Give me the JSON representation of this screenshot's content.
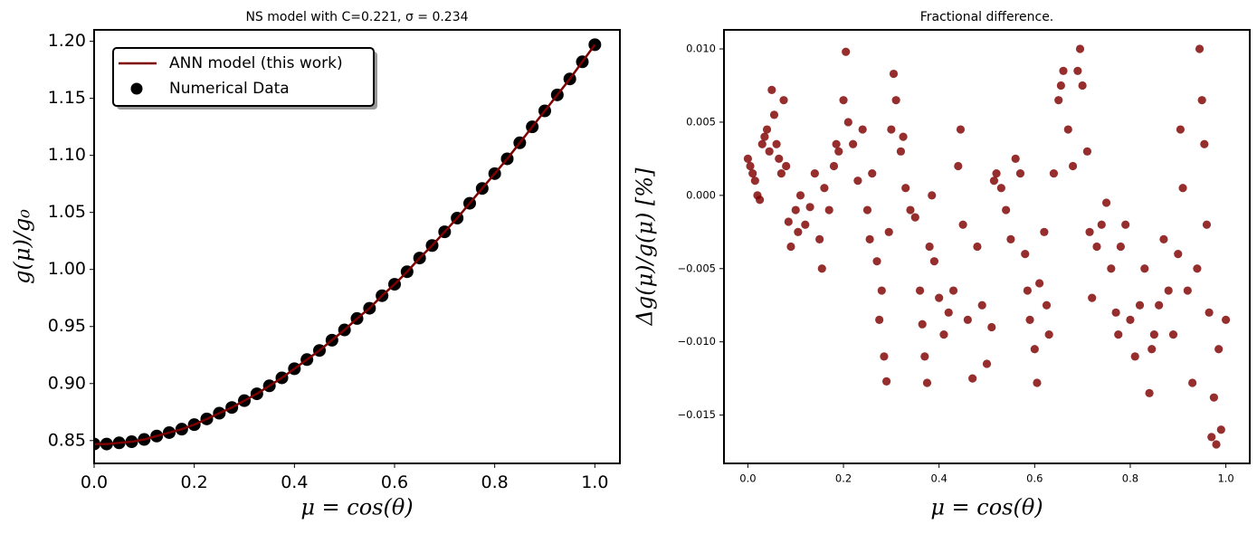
{
  "chart_data": [
    {
      "type": "line",
      "title": "NS model with C=0.221, σ = 0.234",
      "xlabel": "μ = cos(θ)",
      "ylabel": "g(μ)/g₀",
      "x": [
        0,
        0.025,
        0.05,
        0.075,
        0.1,
        0.125,
        0.15,
        0.175,
        0.2,
        0.225,
        0.25,
        0.275,
        0.3,
        0.325,
        0.35,
        0.375,
        0.4,
        0.425,
        0.45,
        0.475,
        0.5,
        0.525,
        0.55,
        0.575,
        0.6,
        0.625,
        0.65,
        0.675,
        0.7,
        0.725,
        0.75,
        0.775,
        0.8,
        0.825,
        0.85,
        0.875,
        0.9,
        0.925,
        0.95,
        0.975,
        1.0
      ],
      "series": [
        {
          "name": "ANN model (this work)",
          "color": "#7f0000",
          "kind": "line",
          "values": [
            0.847,
            0.847,
            0.848,
            0.849,
            0.851,
            0.854,
            0.857,
            0.86,
            0.864,
            0.869,
            0.874,
            0.879,
            0.885,
            0.891,
            0.898,
            0.905,
            0.913,
            0.921,
            0.929,
            0.938,
            0.947,
            0.957,
            0.966,
            0.977,
            0.987,
            0.998,
            1.01,
            1.021,
            1.033,
            1.045,
            1.058,
            1.071,
            1.084,
            1.097,
            1.111,
            1.125,
            1.139,
            1.153,
            1.167,
            1.182,
            1.197
          ]
        },
        {
          "name": "Numerical Data",
          "color": "#000000",
          "kind": "scatter",
          "values": [
            0.847,
            0.847,
            0.848,
            0.849,
            0.851,
            0.854,
            0.857,
            0.86,
            0.864,
            0.869,
            0.874,
            0.879,
            0.885,
            0.891,
            0.898,
            0.905,
            0.913,
            0.921,
            0.929,
            0.938,
            0.947,
            0.957,
            0.966,
            0.977,
            0.987,
            0.998,
            1.01,
            1.021,
            1.033,
            1.045,
            1.058,
            1.071,
            1.084,
            1.097,
            1.111,
            1.125,
            1.139,
            1.153,
            1.167,
            1.182,
            1.197
          ]
        }
      ],
      "xlim": [
        0,
        1.05
      ],
      "xticks": [
        {
          "value": 0,
          "label": "0.0"
        },
        0.2,
        0.4,
        0.6,
        0.8,
        {
          "value": 1,
          "label": "1.0"
        }
      ],
      "ylim": [
        0.83,
        1.21
      ],
      "yticks": [
        0.85,
        {
          "value": 0.9,
          "label": "0.90"
        },
        0.95,
        {
          "value": 1,
          "label": "1.00"
        },
        1.05,
        {
          "value": 1.1,
          "label": "1.10"
        },
        1.15,
        {
          "value": 1.2,
          "label": "1.20"
        }
      ],
      "legend": "upper left"
    },
    {
      "type": "scatter",
      "title": "Fractional difference.",
      "xlabel": "μ = cos(θ)",
      "ylabel": "Δg(μ)/g(μ) [%]",
      "color": "#800000",
      "x": [
        0.0,
        0.005,
        0.01,
        0.015,
        0.02,
        0.025,
        0.03,
        0.035,
        0.04,
        0.045,
        0.05,
        0.055,
        0.06,
        0.065,
        0.07,
        0.075,
        0.08,
        0.085,
        0.09,
        0.1,
        0.105,
        0.11,
        0.12,
        0.13,
        0.14,
        0.15,
        0.155,
        0.16,
        0.17,
        0.18,
        0.185,
        0.19,
        0.2,
        0.205,
        0.21,
        0.22,
        0.23,
        0.24,
        0.25,
        0.255,
        0.26,
        0.27,
        0.275,
        0.28,
        0.285,
        0.29,
        0.295,
        0.3,
        0.305,
        0.31,
        0.32,
        0.325,
        0.33,
        0.34,
        0.35,
        0.36,
        0.365,
        0.37,
        0.375,
        0.38,
        0.385,
        0.39,
        0.4,
        0.41,
        0.42,
        0.43,
        0.44,
        0.445,
        0.45,
        0.46,
        0.47,
        0.48,
        0.49,
        0.5,
        0.51,
        0.515,
        0.52,
        0.53,
        0.54,
        0.55,
        0.56,
        0.57,
        0.58,
        0.585,
        0.59,
        0.6,
        0.605,
        0.61,
        0.62,
        0.625,
        0.63,
        0.64,
        0.65,
        0.655,
        0.66,
        0.67,
        0.68,
        0.69,
        0.695,
        0.7,
        0.71,
        0.715,
        0.72,
        0.73,
        0.74,
        0.75,
        0.76,
        0.77,
        0.775,
        0.78,
        0.79,
        0.8,
        0.81,
        0.82,
        0.83,
        0.84,
        0.845,
        0.85,
        0.86,
        0.87,
        0.88,
        0.89,
        0.9,
        0.905,
        0.91,
        0.92,
        0.93,
        0.94,
        0.945,
        0.95,
        0.955,
        0.96,
        0.965,
        0.97,
        0.975,
        0.98,
        0.985,
        0.99,
        1.0
      ],
      "values": [
        0.0025,
        0.002,
        0.0015,
        0.001,
        0.0,
        -0.0003,
        0.0035,
        0.004,
        0.0045,
        0.003,
        0.0072,
        0.0055,
        0.0035,
        0.0025,
        0.0015,
        0.0065,
        0.002,
        -0.0018,
        -0.0035,
        -0.001,
        -0.0025,
        0.0,
        -0.002,
        -0.0008,
        0.0015,
        -0.003,
        -0.005,
        0.0005,
        -0.001,
        0.002,
        0.0035,
        0.003,
        0.0065,
        0.0098,
        0.005,
        0.0035,
        0.001,
        0.0045,
        -0.001,
        -0.003,
        0.0015,
        -0.0045,
        -0.0085,
        -0.0065,
        -0.011,
        -0.0127,
        -0.0025,
        0.0045,
        0.0083,
        0.0065,
        0.003,
        0.004,
        0.0005,
        -0.001,
        -0.0015,
        -0.0065,
        -0.0088,
        -0.011,
        -0.0128,
        -0.0035,
        0.0,
        -0.0045,
        -0.007,
        -0.0095,
        -0.008,
        -0.0065,
        0.002,
        0.0045,
        -0.002,
        -0.0085,
        -0.0125,
        -0.0035,
        -0.0075,
        -0.0115,
        -0.009,
        0.001,
        0.0015,
        0.0005,
        -0.001,
        -0.003,
        0.0025,
        0.0015,
        -0.004,
        -0.0065,
        -0.0085,
        -0.0105,
        -0.0128,
        -0.006,
        -0.0025,
        -0.0075,
        -0.0095,
        0.0015,
        0.0065,
        0.0075,
        0.0085,
        0.0045,
        0.002,
        0.0085,
        0.01,
        0.0075,
        0.003,
        -0.0025,
        -0.007,
        -0.0035,
        -0.002,
        -0.0005,
        -0.005,
        -0.008,
        -0.0095,
        -0.0035,
        -0.002,
        -0.0085,
        -0.011,
        -0.0075,
        -0.005,
        -0.0135,
        -0.0105,
        -0.0095,
        -0.0075,
        -0.003,
        -0.0065,
        -0.0095,
        -0.004,
        0.0045,
        0.0005,
        -0.0065,
        -0.0128,
        -0.005,
        0.01,
        0.0065,
        0.0035,
        -0.002,
        -0.008,
        -0.0165,
        -0.0138,
        -0.017,
        -0.0105,
        -0.016,
        -0.0085
      ],
      "xlim": [
        -0.05,
        1.05
      ],
      "xticks": [
        {
          "value": 0,
          "label": "0.0"
        },
        0.2,
        0.4,
        0.6,
        0.8,
        {
          "value": 1,
          "label": "1.0"
        }
      ],
      "ylim": [
        -0.0183,
        0.0113
      ],
      "yticks": [
        {
          "value": 0.01,
          "label": "0.010"
        },
        0.005,
        {
          "value": 0,
          "label": "0.000"
        },
        {
          "value": -0.005,
          "label": "−0.005"
        },
        {
          "value": -0.01,
          "label": "−0.010"
        },
        {
          "value": -0.015,
          "label": "−0.015"
        }
      ]
    }
  ]
}
